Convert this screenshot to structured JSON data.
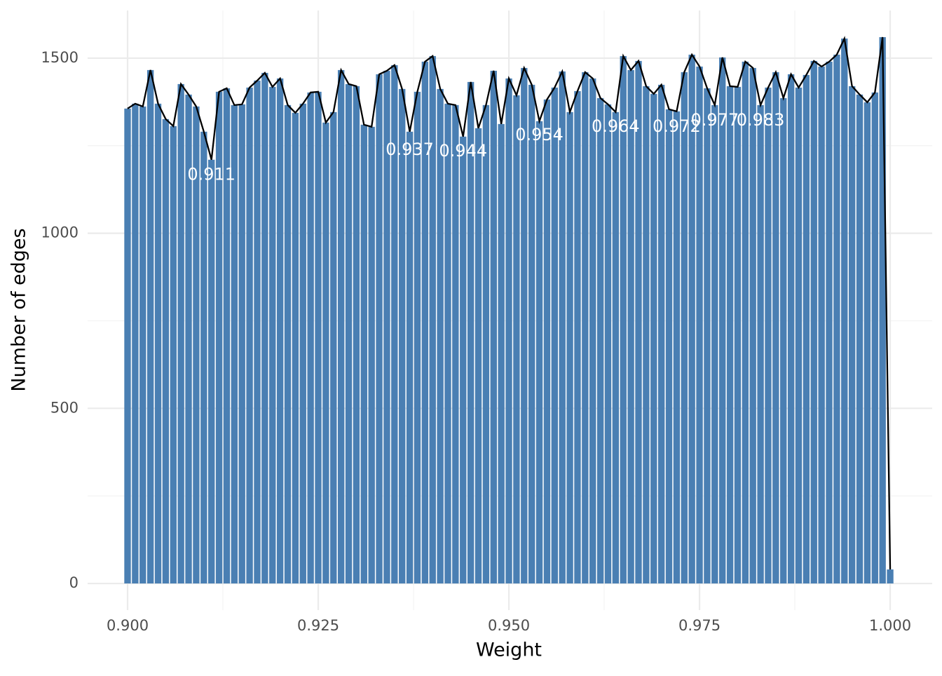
{
  "chart_data": {
    "type": "bar",
    "xlabel": "Weight",
    "ylabel": "Number of edges",
    "x": [
      0.9,
      0.901,
      0.902,
      0.903,
      0.904,
      0.905,
      0.906,
      0.907,
      0.908,
      0.909,
      0.91,
      0.911,
      0.912,
      0.913,
      0.914,
      0.915,
      0.916,
      0.917,
      0.918,
      0.919,
      0.92,
      0.921,
      0.922,
      0.923,
      0.924,
      0.925,
      0.926,
      0.927,
      0.928,
      0.929,
      0.93,
      0.931,
      0.932,
      0.933,
      0.934,
      0.935,
      0.936,
      0.937,
      0.938,
      0.939,
      0.94,
      0.941,
      0.942,
      0.943,
      0.944,
      0.945,
      0.946,
      0.947,
      0.948,
      0.949,
      0.95,
      0.951,
      0.952,
      0.953,
      0.954,
      0.955,
      0.956,
      0.957,
      0.958,
      0.959,
      0.96,
      0.961,
      0.962,
      0.963,
      0.964,
      0.965,
      0.966,
      0.967,
      0.968,
      0.969,
      0.97,
      0.971,
      0.972,
      0.973,
      0.974,
      0.975,
      0.976,
      0.977,
      0.978,
      0.979,
      0.98,
      0.981,
      0.982,
      0.983,
      0.984,
      0.985,
      0.986,
      0.987,
      0.988,
      0.989,
      0.99,
      0.991,
      0.992,
      0.993,
      0.994,
      0.995,
      0.996,
      0.997,
      0.998,
      0.999,
      1.0
    ],
    "values": [
      1356,
      1370,
      1362,
      1466,
      1370,
      1326,
      1306,
      1426,
      1396,
      1362,
      1290,
      1210,
      1404,
      1414,
      1366,
      1368,
      1416,
      1436,
      1458,
      1418,
      1442,
      1366,
      1344,
      1370,
      1402,
      1404,
      1316,
      1346,
      1466,
      1426,
      1420,
      1310,
      1304,
      1454,
      1464,
      1480,
      1412,
      1290,
      1404,
      1490,
      1506,
      1412,
      1370,
      1366,
      1276,
      1432,
      1300,
      1366,
      1464,
      1312,
      1442,
      1394,
      1472,
      1424,
      1320,
      1382,
      1416,
      1462,
      1346,
      1406,
      1460,
      1442,
      1386,
      1368,
      1346,
      1506,
      1466,
      1492,
      1420,
      1398,
      1424,
      1354,
      1348,
      1460,
      1510,
      1476,
      1414,
      1366,
      1502,
      1420,
      1418,
      1490,
      1472,
      1366,
      1416,
      1460,
      1386,
      1454,
      1416,
      1452,
      1492,
      1476,
      1490,
      1510,
      1556,
      1420,
      1396,
      1374,
      1402,
      1560,
      40
    ],
    "color": "#4a7fb3",
    "line_color": "#000000",
    "annotations": [
      {
        "text": "0.911",
        "x": 0.911,
        "y": 1166
      },
      {
        "text": "0.937",
        "x": 0.937,
        "y": 1238
      },
      {
        "text": "0.944",
        "x": 0.944,
        "y": 1234
      },
      {
        "text": "0.954",
        "x": 0.954,
        "y": 1280
      },
      {
        "text": "0.964",
        "x": 0.964,
        "y": 1304
      },
      {
        "text": "0.972",
        "x": 0.972,
        "y": 1304
      },
      {
        "text": "0.977",
        "x": 0.977,
        "y": 1322
      },
      {
        "text": "0.983",
        "x": 0.983,
        "y": 1322
      }
    ],
    "xlim": [
      0.89476,
      1.00551
    ],
    "ylim": [
      -76,
      1636
    ],
    "xticks": [
      {
        "value": 0.9,
        "label": "0.900"
      },
      {
        "value": 0.925,
        "label": "0.925"
      },
      {
        "value": 0.95,
        "label": "0.950"
      },
      {
        "value": 0.975,
        "label": "0.975"
      },
      {
        "value": 1.0,
        "label": "1.000"
      }
    ],
    "yticks": [
      0,
      500,
      1000,
      1500
    ],
    "xminor": [
      0.9125,
      0.9375,
      0.9625,
      0.9875
    ],
    "yminor": [
      250,
      750,
      1250
    ],
    "grid": true
  }
}
